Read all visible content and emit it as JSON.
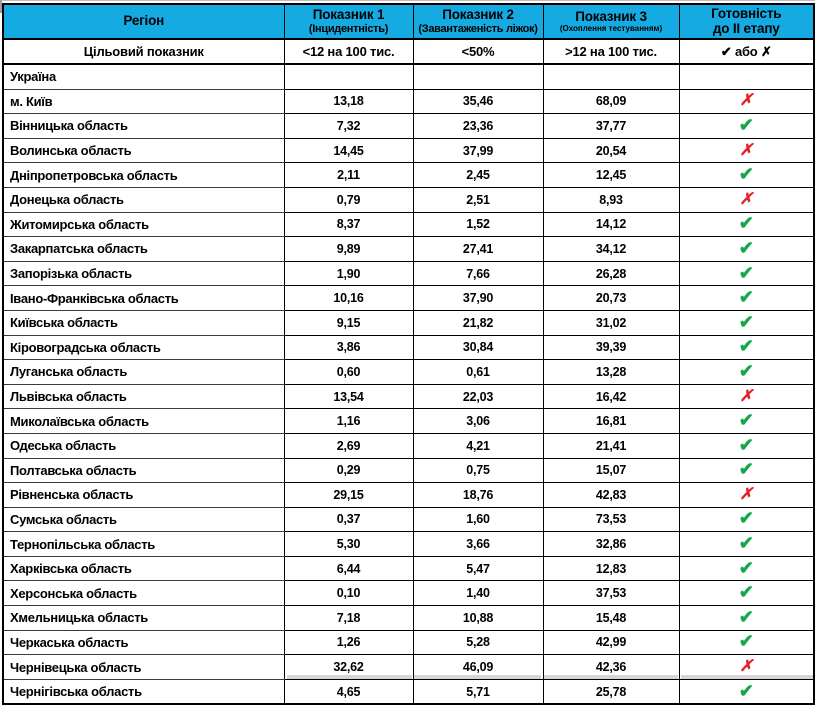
{
  "colors": {
    "header_bg": "#15abe2",
    "green": "#21ac4e",
    "yellow": "#ffff00",
    "gray": "#c6c6c6",
    "check_green": "#17a64c",
    "cross_red": "#e32227"
  },
  "icons": {
    "check": "✔",
    "cross": "✗"
  },
  "header": {
    "region": "Регіон",
    "indicators": [
      {
        "title": "Показник 1",
        "subtitle": "(Інцидентність)"
      },
      {
        "title": "Показник 2",
        "subtitle": "(Завантаженість ліжок)"
      },
      {
        "title": "Показник 3",
        "subtitle": "(Охоплення тестуванням)"
      }
    ],
    "readiness_line1": "Готовність",
    "readiness_line2": "до II етапу"
  },
  "target_row": {
    "label": "Цільовий показник",
    "values": [
      "<12 на 100 тис.",
      "<50%",
      ">12 на 100 тис."
    ],
    "readiness": "✔ або ✗"
  },
  "rows": [
    {
      "region": "Україна",
      "values": [
        "",
        "",
        ""
      ],
      "cell_colors": [
        "green",
        "green",
        "yellow"
      ],
      "status": "none",
      "status_bg": "gray"
    },
    {
      "region": "м. Київ",
      "values": [
        "13,18",
        "35,46",
        "68,09"
      ],
      "cell_colors": [
        "yellow",
        "green",
        "green"
      ],
      "status": "cross"
    },
    {
      "region": "Вінницька область",
      "values": [
        "7,32",
        "23,36",
        "37,77"
      ],
      "cell_colors": [
        "green",
        "green",
        "green"
      ],
      "status": "check"
    },
    {
      "region": "Волинська область",
      "values": [
        "14,45",
        "37,99",
        "20,54"
      ],
      "cell_colors": [
        "yellow",
        "green",
        "green"
      ],
      "status": "cross"
    },
    {
      "region": "Дніпропетровська область",
      "values": [
        "2,11",
        "2,45",
        "12,45"
      ],
      "cell_colors": [
        "green",
        "green",
        "green"
      ],
      "status": "check"
    },
    {
      "region": "Донецька область",
      "values": [
        "0,79",
        "2,51",
        "8,93"
      ],
      "cell_colors": [
        "green",
        "green",
        "yellow"
      ],
      "status": "cross"
    },
    {
      "region": "Житомирська область",
      "values": [
        "8,37",
        "1,52",
        "14,12"
      ],
      "cell_colors": [
        "green",
        "green",
        "green"
      ],
      "status": "check"
    },
    {
      "region": "Закарпатська область",
      "values": [
        "9,89",
        "27,41",
        "34,12"
      ],
      "cell_colors": [
        "green",
        "green",
        "green"
      ],
      "status": "check"
    },
    {
      "region": "Запорізька область",
      "values": [
        "1,90",
        "7,66",
        "26,28"
      ],
      "cell_colors": [
        "green",
        "green",
        "green"
      ],
      "status": "check"
    },
    {
      "region": "Івано-Франківська область",
      "values": [
        "10,16",
        "37,90",
        "20,73"
      ],
      "cell_colors": [
        "green",
        "green",
        "green"
      ],
      "status": "check"
    },
    {
      "region": "Київська область",
      "values": [
        "9,15",
        "21,82",
        "31,02"
      ],
      "cell_colors": [
        "green",
        "green",
        "green"
      ],
      "status": "check"
    },
    {
      "region": "Кіровоградська область",
      "values": [
        "3,86",
        "30,84",
        "39,39"
      ],
      "cell_colors": [
        "green",
        "green",
        "green"
      ],
      "status": "check"
    },
    {
      "region": "Луганська область",
      "values": [
        "0,60",
        "0,61",
        "13,28"
      ],
      "cell_colors": [
        "green",
        "green",
        "green"
      ],
      "status": "check"
    },
    {
      "region": "Львівська область",
      "values": [
        "13,54",
        "22,03",
        "16,42"
      ],
      "cell_colors": [
        "yellow",
        "green",
        "green"
      ],
      "status": "cross"
    },
    {
      "region": "Миколаївська область",
      "values": [
        "1,16",
        "3,06",
        "16,81"
      ],
      "cell_colors": [
        "green",
        "green",
        "green"
      ],
      "status": "check"
    },
    {
      "region": "Одеська область",
      "values": [
        "2,69",
        "4,21",
        "21,41"
      ],
      "cell_colors": [
        "green",
        "green",
        "green"
      ],
      "status": "check"
    },
    {
      "region": "Полтавська область",
      "values": [
        "0,29",
        "0,75",
        "15,07"
      ],
      "cell_colors": [
        "green",
        "green",
        "green"
      ],
      "status": "check"
    },
    {
      "region": "Рівненська область",
      "values": [
        "29,15",
        "18,76",
        "42,83"
      ],
      "cell_colors": [
        "yellow",
        "green",
        "green"
      ],
      "status": "cross"
    },
    {
      "region": "Сумська область",
      "values": [
        "0,37",
        "1,60",
        "73,53"
      ],
      "cell_colors": [
        "green",
        "green",
        "green"
      ],
      "status": "check"
    },
    {
      "region": "Тернопільська область",
      "values": [
        "5,30",
        "3,66",
        "32,86"
      ],
      "cell_colors": [
        "green",
        "green",
        "green"
      ],
      "status": "check"
    },
    {
      "region": "Харківська область",
      "values": [
        "6,44",
        "5,47",
        "12,83"
      ],
      "cell_colors": [
        "green",
        "green",
        "green"
      ],
      "status": "check"
    },
    {
      "region": "Херсонська область",
      "values": [
        "0,10",
        "1,40",
        "37,53"
      ],
      "cell_colors": [
        "green",
        "green",
        "green"
      ],
      "status": "check"
    },
    {
      "region": "Хмельницька область",
      "values": [
        "7,18",
        "10,88",
        "15,48"
      ],
      "cell_colors": [
        "green",
        "green",
        "green"
      ],
      "status": "check"
    },
    {
      "region": "Черкаська область",
      "values": [
        "1,26",
        "5,28",
        "42,99"
      ],
      "cell_colors": [
        "green",
        "green",
        "green"
      ],
      "status": "check"
    },
    {
      "region": "Чернівецька область",
      "values": [
        "32,62",
        "46,09",
        "42,36"
      ],
      "cell_colors": [
        "yellow",
        "green",
        "green"
      ],
      "status": "cross"
    },
    {
      "region": "Чернігівська область",
      "values": [
        "4,65",
        "5,71",
        "25,78"
      ],
      "cell_colors": [
        "green",
        "green",
        "green"
      ],
      "status": "check"
    }
  ]
}
